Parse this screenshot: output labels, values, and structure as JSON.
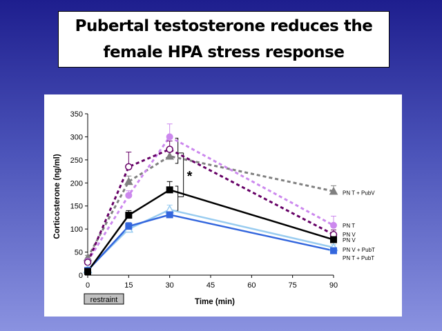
{
  "slide": {
    "title": "Pubertal testosterone reduces the female HPA stress response"
  },
  "chart_data": {
    "type": "line",
    "title": "",
    "xlabel": "Time (min)",
    "ylabel": "Corticosterone (ng/ml)",
    "x": [
      0,
      15,
      30,
      90
    ],
    "xticks": [
      "0",
      "15",
      "30",
      "45",
      "60",
      "75",
      "90"
    ],
    "xlim": [
      0,
      90
    ],
    "yticks": [
      "0",
      "50",
      "100",
      "150",
      "200",
      "250",
      "300",
      "350"
    ],
    "ylim": [
      0,
      350
    ],
    "grid": false,
    "annotations": {
      "restraint_label": "restraint",
      "significance": "*"
    },
    "series": [
      {
        "name": "PN T + PubV",
        "values": [
          38,
          203,
          258,
          182
        ],
        "errors": [
          5,
          12,
          12,
          12
        ],
        "color": "#808080",
        "marker": "triangle",
        "dash": true
      },
      {
        "name": "PN T",
        "values": [
          30,
          173,
          300,
          108
        ],
        "errors": [
          5,
          10,
          28,
          20
        ],
        "color": "#cc88ee",
        "marker": "circle",
        "dash": true
      },
      {
        "name": "PN V",
        "values": [
          28,
          235,
          273,
          88
        ],
        "errors": [
          5,
          32,
          18,
          10
        ],
        "color": "#660066",
        "marker": "circle-open",
        "dash": true
      },
      {
        "name": "PN V",
        "values": [
          8,
          130,
          185,
          77
        ],
        "errors": [
          3,
          10,
          18,
          8
        ],
        "color": "#000000",
        "marker": "square",
        "dash": false
      },
      {
        "name": "PN V + PubT",
        "values": [
          12,
          100,
          142,
          60
        ],
        "errors": [
          3,
          8,
          10,
          6
        ],
        "color": "#99ccf0",
        "marker": "triangle-open",
        "dash": false
      },
      {
        "name": "PN T + PubT",
        "values": [
          10,
          106,
          131,
          53
        ],
        "errors": [
          3,
          8,
          8,
          5
        ],
        "color": "#3366dd",
        "marker": "square",
        "dash": false
      }
    ]
  }
}
